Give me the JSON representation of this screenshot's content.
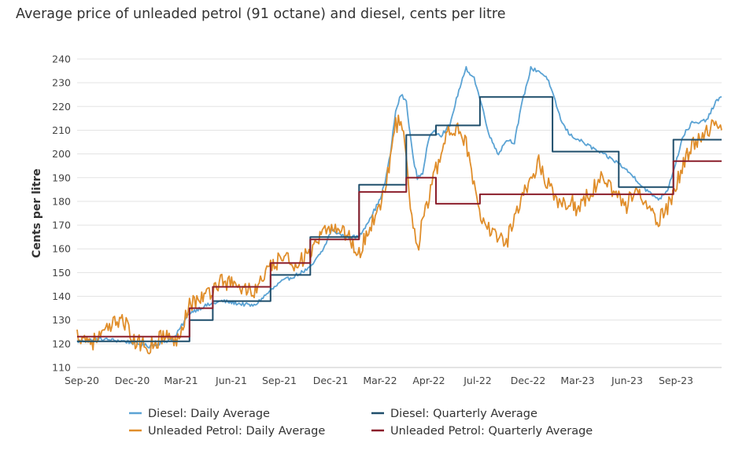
{
  "title": "Average price of unleaded petrol (91 octane) and diesel, cents per litre",
  "colors": {
    "diesel_daily": "#5BA3D4",
    "diesel_quarterly": "#1F4E6B",
    "petrol_daily": "#E08E2B",
    "petrol_quarterly": "#8B1E2B"
  },
  "chart_data": {
    "type": "line",
    "ylabel": "Cents per litre",
    "ylim": [
      110,
      240
    ],
    "yticks": [
      110,
      120,
      130,
      140,
      150,
      160,
      170,
      180,
      190,
      200,
      210,
      220,
      230,
      240
    ],
    "x_tick_labels": [
      "Sep-20",
      "Dec-20",
      "Mar-21",
      "Jun-21",
      "Sep-21",
      "Dec-21",
      "Mar-22",
      "Apr-22",
      "Jul-22",
      "Dec-22",
      "Mar-23",
      "Jun-23",
      "Sep-23"
    ],
    "grid": "horizontal",
    "legend_position": "bottom",
    "series": [
      {
        "name": "Diesel: Daily Average",
        "style": "daily",
        "points": [
          [
            "2020-09-01",
            121
          ],
          [
            "2020-10-15",
            122
          ],
          [
            "2020-12-01",
            121
          ],
          [
            "2021-01-15",
            119
          ],
          [
            "2021-02-15",
            121
          ],
          [
            "2021-03-05",
            123
          ],
          [
            "2021-04-01",
            133
          ],
          [
            "2021-05-01",
            136
          ],
          [
            "2021-06-01",
            138
          ],
          [
            "2021-07-01",
            137
          ],
          [
            "2021-08-01",
            136
          ],
          [
            "2021-08-25",
            141
          ],
          [
            "2021-09-20",
            146
          ],
          [
            "2021-10-20",
            149
          ],
          [
            "2021-11-15",
            152
          ],
          [
            "2021-12-10",
            160
          ],
          [
            "2021-12-25",
            168
          ],
          [
            "2022-01-20",
            165
          ],
          [
            "2022-02-15",
            165
          ],
          [
            "2022-03-05",
            172
          ],
          [
            "2022-03-25",
            180
          ],
          [
            "2022-04-05",
            188
          ],
          [
            "2022-04-15",
            200
          ],
          [
            "2022-04-25",
            218
          ],
          [
            "2022-05-05",
            225
          ],
          [
            "2022-05-15",
            222
          ],
          [
            "2022-05-28",
            198
          ],
          [
            "2022-06-05",
            190
          ],
          [
            "2022-06-15",
            192
          ],
          [
            "2022-06-25",
            205
          ],
          [
            "2022-07-05",
            210
          ],
          [
            "2022-07-20",
            208
          ],
          [
            "2022-08-05",
            212
          ],
          [
            "2022-08-20",
            225
          ],
          [
            "2022-09-05",
            236
          ],
          [
            "2022-09-20",
            232
          ],
          [
            "2022-10-05",
            220
          ],
          [
            "2022-10-20",
            207
          ],
          [
            "2022-11-05",
            200
          ],
          [
            "2022-11-20",
            206
          ],
          [
            "2022-12-05",
            205
          ],
          [
            "2022-12-20",
            222
          ],
          [
            "2023-01-05",
            236
          ],
          [
            "2023-01-20",
            235
          ],
          [
            "2023-02-05",
            232
          ],
          [
            "2023-02-20",
            222
          ],
          [
            "2023-03-05",
            213
          ],
          [
            "2023-03-20",
            208
          ],
          [
            "2023-04-05",
            206
          ],
          [
            "2023-04-20",
            204
          ],
          [
            "2023-05-05",
            202
          ],
          [
            "2023-05-20",
            200
          ],
          [
            "2023-06-05",
            198
          ],
          [
            "2023-06-20",
            196
          ],
          [
            "2023-07-05",
            193
          ],
          [
            "2023-07-20",
            190
          ],
          [
            "2023-08-05",
            186
          ],
          [
            "2023-08-20",
            183
          ],
          [
            "2023-09-05",
            181
          ],
          [
            "2023-09-20",
            185
          ],
          [
            "2023-10-05",
            196
          ],
          [
            "2023-10-20",
            208
          ],
          [
            "2023-11-05",
            213
          ],
          [
            "2023-11-20",
            213
          ],
          [
            "2023-12-05",
            215
          ],
          [
            "2023-12-20",
            222
          ],
          [
            "2023-12-31",
            224
          ]
        ]
      },
      {
        "name": "Diesel: Quarterly Average",
        "style": "step",
        "steps": [
          [
            "2020-09-01",
            "2021-02-01",
            121
          ],
          [
            "2021-02-01",
            "2021-04-01",
            121
          ],
          [
            "2021-04-01",
            "2021-05-15",
            130
          ],
          [
            "2021-05-15",
            "2021-07-01",
            138
          ],
          [
            "2021-07-01",
            "2021-09-01",
            138
          ],
          [
            "2021-09-01",
            "2021-11-15",
            149
          ],
          [
            "2021-11-15",
            "2022-01-01",
            165
          ],
          [
            "2022-01-01",
            "2022-02-15",
            165
          ],
          [
            "2022-02-15",
            "2022-05-15",
            187
          ],
          [
            "2022-05-15",
            "2022-07-10",
            208
          ],
          [
            "2022-07-10",
            "2022-10-01",
            212
          ],
          [
            "2022-10-01",
            "2023-02-15",
            224
          ],
          [
            "2023-02-15",
            "2023-06-20",
            201
          ],
          [
            "2023-06-20",
            "2023-10-01",
            186
          ],
          [
            "2023-10-01",
            "2023-12-31",
            206
          ]
        ]
      },
      {
        "name": "Unleaded Petrol: Daily Average",
        "style": "daily",
        "points": [
          [
            "2020-09-01",
            124
          ],
          [
            "2020-10-01",
            121
          ],
          [
            "2020-11-01",
            126
          ],
          [
            "2020-11-25",
            132
          ],
          [
            "2020-12-15",
            121
          ],
          [
            "2021-01-15",
            119
          ],
          [
            "2021-02-15",
            124
          ],
          [
            "2021-03-05",
            120
          ],
          [
            "2021-04-01",
            137
          ],
          [
            "2021-05-01",
            140
          ],
          [
            "2021-06-01",
            147
          ],
          [
            "2021-07-01",
            144
          ],
          [
            "2021-08-01",
            142
          ],
          [
            "2021-08-25",
            150
          ],
          [
            "2021-09-20",
            156
          ],
          [
            "2021-10-20",
            154
          ],
          [
            "2021-11-15",
            158
          ],
          [
            "2021-12-10",
            166
          ],
          [
            "2021-12-25",
            170
          ],
          [
            "2022-01-20",
            167
          ],
          [
            "2022-02-15",
            158
          ],
          [
            "2022-03-05",
            168
          ],
          [
            "2022-03-25",
            178
          ],
          [
            "2022-04-05",
            186
          ],
          [
            "2022-04-15",
            198
          ],
          [
            "2022-04-25",
            212
          ],
          [
            "2022-05-05",
            214
          ],
          [
            "2022-05-15",
            198
          ],
          [
            "2022-05-28",
            168
          ],
          [
            "2022-06-05",
            160
          ],
          [
            "2022-06-15",
            172
          ],
          [
            "2022-06-25",
            180
          ],
          [
            "2022-07-05",
            190
          ],
          [
            "2022-07-20",
            200
          ],
          [
            "2022-08-05",
            210
          ],
          [
            "2022-08-20",
            212
          ],
          [
            "2022-09-05",
            205
          ],
          [
            "2022-09-20",
            185
          ],
          [
            "2022-10-05",
            170
          ],
          [
            "2022-10-20",
            168
          ],
          [
            "2022-11-05",
            166
          ],
          [
            "2022-11-20",
            162
          ],
          [
            "2022-12-05",
            175
          ],
          [
            "2022-12-20",
            182
          ],
          [
            "2023-01-05",
            190
          ],
          [
            "2023-01-20",
            196
          ],
          [
            "2023-02-05",
            188
          ],
          [
            "2023-02-20",
            183
          ],
          [
            "2023-03-05",
            178
          ],
          [
            "2023-03-20",
            181
          ],
          [
            "2023-04-05",
            176
          ],
          [
            "2023-04-20",
            182
          ],
          [
            "2023-05-05",
            186
          ],
          [
            "2023-05-20",
            190
          ],
          [
            "2023-06-05",
            186
          ],
          [
            "2023-06-20",
            182
          ],
          [
            "2023-07-05",
            178
          ],
          [
            "2023-07-20",
            186
          ],
          [
            "2023-08-05",
            180
          ],
          [
            "2023-08-20",
            174
          ],
          [
            "2023-09-05",
            172
          ],
          [
            "2023-09-20",
            178
          ],
          [
            "2023-10-05",
            186
          ],
          [
            "2023-10-20",
            196
          ],
          [
            "2023-11-05",
            204
          ],
          [
            "2023-11-20",
            206
          ],
          [
            "2023-12-05",
            210
          ],
          [
            "2023-12-20",
            212
          ],
          [
            "2023-12-31",
            210
          ]
        ]
      },
      {
        "name": "Unleaded Petrol: Quarterly Average",
        "style": "step",
        "steps": [
          [
            "2020-09-01",
            "2021-02-01",
            123
          ],
          [
            "2021-02-01",
            "2021-04-01",
            123
          ],
          [
            "2021-04-01",
            "2021-05-15",
            135
          ],
          [
            "2021-05-15",
            "2021-07-01",
            144
          ],
          [
            "2021-07-01",
            "2021-09-01",
            144
          ],
          [
            "2021-09-01",
            "2021-11-15",
            154
          ],
          [
            "2021-11-15",
            "2022-01-01",
            164
          ],
          [
            "2022-01-01",
            "2022-02-15",
            164
          ],
          [
            "2022-02-15",
            "2022-05-15",
            184
          ],
          [
            "2022-05-15",
            "2022-07-10",
            190
          ],
          [
            "2022-07-10",
            "2022-10-01",
            179
          ],
          [
            "2022-10-01",
            "2023-02-15",
            183
          ],
          [
            "2023-02-15",
            "2023-06-20",
            183
          ],
          [
            "2023-06-20",
            "2023-10-01",
            183
          ],
          [
            "2023-10-01",
            "2023-12-31",
            197
          ]
        ]
      }
    ]
  }
}
